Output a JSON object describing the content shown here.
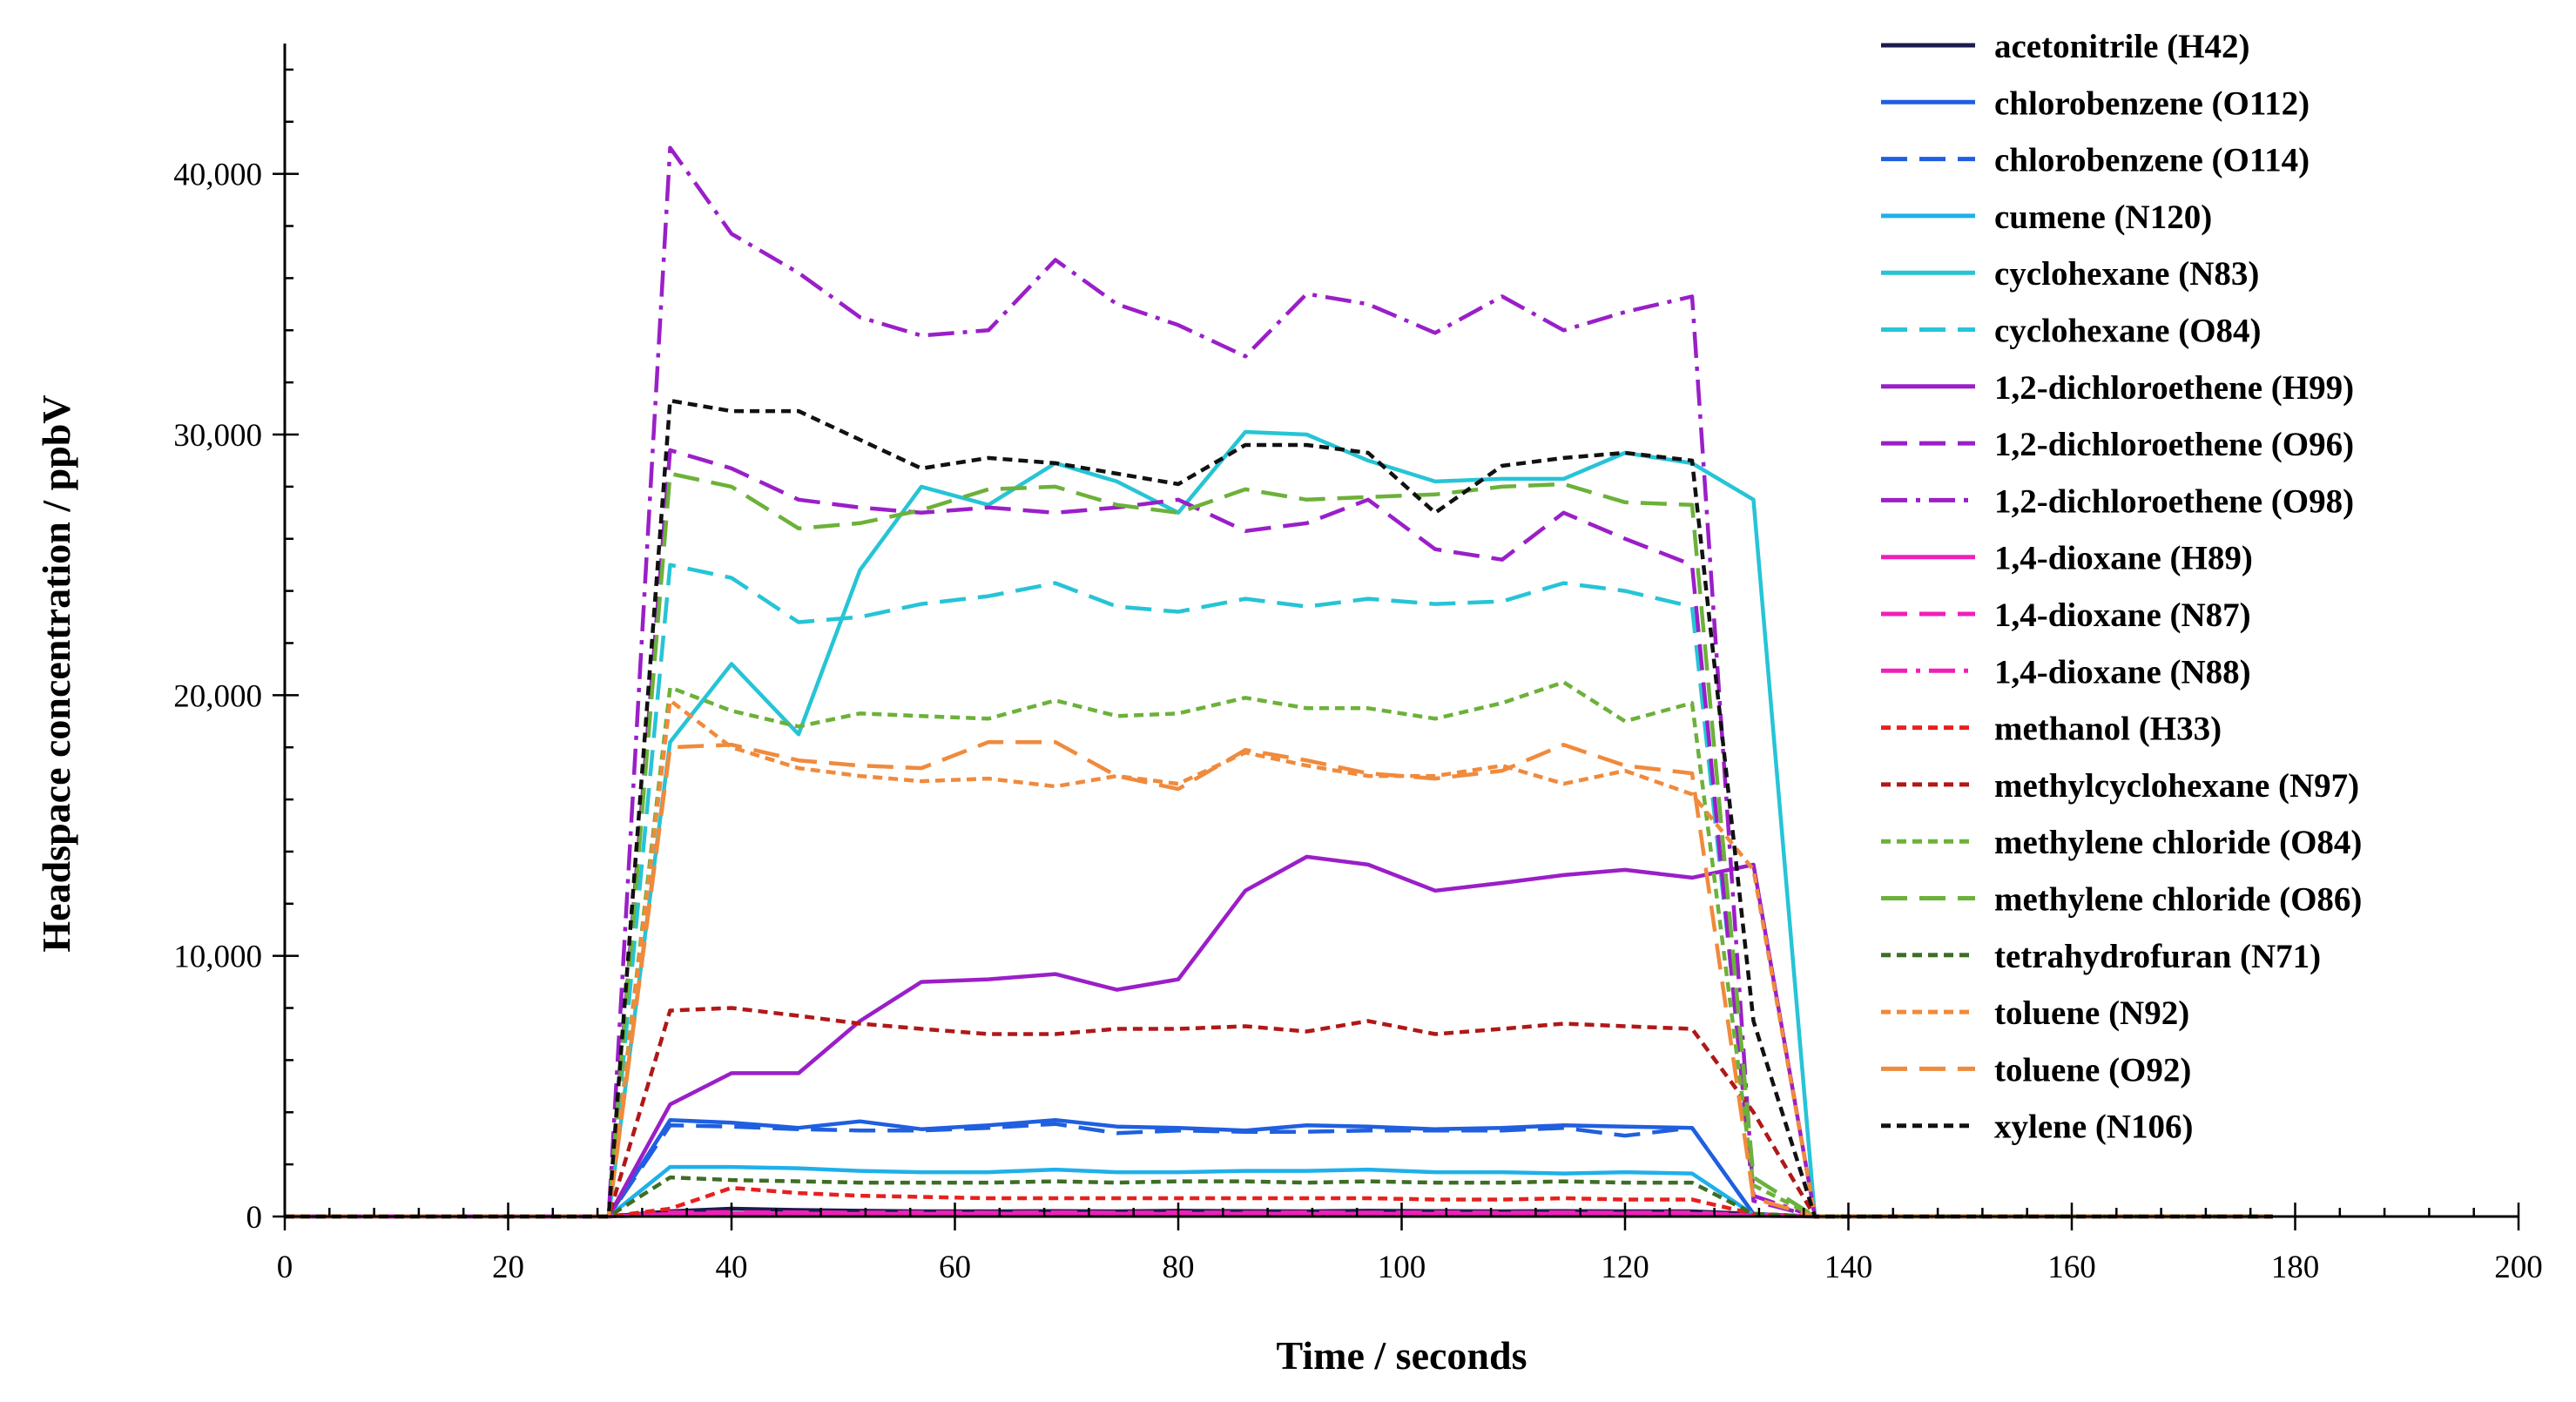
{
  "chart_data": {
    "type": "line",
    "title": "",
    "xlabel": "Time / seconds",
    "ylabel": "Headspace concentration / ppbV",
    "xlim": [
      0,
      200
    ],
    "ylim": [
      0,
      45000
    ],
    "x_ticks": [
      0,
      20,
      40,
      60,
      80,
      100,
      120,
      140,
      160,
      180,
      200
    ],
    "x_tick_labels": [
      "0",
      "20",
      "40",
      "60",
      "80",
      "100",
      "120",
      "140",
      "160",
      "180",
      "200"
    ],
    "y_ticks": [
      0,
      10000,
      20000,
      30000,
      40000
    ],
    "y_tick_labels": [
      "0",
      "10,000",
      "20,000",
      "30,000",
      "40,000"
    ],
    "grid": false,
    "legend_position": "right",
    "x": [
      0,
      6,
      12,
      17,
      23,
      29,
      34.5,
      40,
      46,
      51.5,
      57,
      63,
      69,
      74.5,
      80,
      86,
      91.5,
      97,
      103,
      109,
      114.5,
      120,
      126,
      131.5,
      137,
      143,
      149,
      154,
      160,
      166,
      172,
      178
    ],
    "series": [
      {
        "name": "acetonitrile (H42)",
        "color": "#1b1b4d",
        "dash": "solid",
        "values": [
          0,
          0,
          0,
          0,
          0,
          0,
          200,
          300,
          250,
          220,
          200,
          200,
          210,
          200,
          220,
          210,
          200,
          220,
          210,
          200,
          210,
          200,
          200,
          100,
          0,
          0,
          0,
          0,
          0,
          0,
          0,
          0
        ]
      },
      {
        "name": "chlorobenzene (O112)",
        "color": "#1f5fe0",
        "dash": "solid",
        "values": [
          0,
          0,
          0,
          0,
          0,
          0,
          3700,
          3600,
          3400,
          3650,
          3350,
          3500,
          3700,
          3450,
          3400,
          3300,
          3500,
          3450,
          3350,
          3400,
          3500,
          3450,
          3400,
          100,
          0,
          0,
          0,
          0,
          0,
          0,
          0,
          0
        ]
      },
      {
        "name": "chlorobenzene (O114)",
        "color": "#1f5fe0",
        "dash": "longdash",
        "values": [
          0,
          0,
          0,
          0,
          0,
          0,
          3500,
          3450,
          3350,
          3300,
          3300,
          3400,
          3550,
          3200,
          3300,
          3250,
          3250,
          3300,
          3300,
          3300,
          3400,
          3100,
          3400,
          100,
          0,
          0,
          0,
          0,
          0,
          0,
          0,
          0
        ]
      },
      {
        "name": "cumene (N120)",
        "color": "#1fb0ea",
        "dash": "solid",
        "values": [
          0,
          0,
          0,
          0,
          0,
          0,
          1900,
          1900,
          1850,
          1750,
          1700,
          1700,
          1800,
          1700,
          1700,
          1750,
          1750,
          1800,
          1700,
          1700,
          1650,
          1700,
          1650,
          80,
          0,
          0,
          0,
          0,
          0,
          0,
          0,
          0
        ]
      },
      {
        "name": "cyclohexane (N83)",
        "color": "#26c4d6",
        "dash": "solid",
        "values": [
          0,
          0,
          0,
          0,
          0,
          0,
          18200,
          21200,
          18500,
          24800,
          28000,
          27300,
          28900,
          28200,
          27000,
          30100,
          30000,
          29000,
          28200,
          28300,
          28300,
          29300,
          28900,
          27500,
          0,
          0,
          0,
          0,
          0,
          0,
          0,
          0
        ]
      },
      {
        "name": "cyclohexane (O84)",
        "color": "#26c4d6",
        "dash": "longdash",
        "values": [
          0,
          0,
          0,
          0,
          0,
          0,
          25000,
          24500,
          22800,
          23000,
          23500,
          23800,
          24300,
          23400,
          23200,
          23700,
          23400,
          23700,
          23500,
          23600,
          24300,
          24000,
          23400,
          1500,
          0,
          0,
          0,
          0,
          0,
          0,
          0,
          0
        ]
      },
      {
        "name": "1,2-dichloroethene (H99)",
        "color": "#9a1fc8",
        "dash": "solid",
        "values": [
          0,
          0,
          0,
          0,
          0,
          0,
          4300,
          5500,
          5500,
          7500,
          9000,
          9100,
          9300,
          8700,
          9100,
          12500,
          13800,
          13500,
          12500,
          12800,
          13100,
          13300,
          13000,
          13500,
          0,
          0,
          0,
          0,
          0,
          0,
          0,
          0
        ]
      },
      {
        "name": "1,2-dichloroethene (O96)",
        "color": "#9a1fc8",
        "dash": "longdash",
        "values": [
          0,
          0,
          0,
          0,
          0,
          0,
          29400,
          28700,
          27500,
          27200,
          27000,
          27200,
          27000,
          27200,
          27500,
          26300,
          26600,
          27500,
          25600,
          25200,
          27000,
          26000,
          25000,
          600,
          0,
          0,
          0,
          0,
          0,
          0,
          0,
          0
        ]
      },
      {
        "name": "1,2-dichloroethene (O98)",
        "color": "#9a1fc8",
        "dash": "dashdot",
        "values": [
          0,
          0,
          0,
          0,
          0,
          0,
          41000,
          37700,
          36200,
          34500,
          33800,
          34000,
          36700,
          35000,
          34200,
          33000,
          35400,
          35000,
          33900,
          35300,
          34000,
          34700,
          35300,
          800,
          0,
          0,
          0,
          0,
          0,
          0,
          0,
          0
        ]
      },
      {
        "name": "1,4-dioxane (H89)",
        "color": "#f01fb8",
        "dash": "solid",
        "values": [
          0,
          0,
          0,
          0,
          0,
          0,
          100,
          120,
          110,
          100,
          100,
          110,
          100,
          110,
          100,
          110,
          100,
          110,
          100,
          110,
          100,
          110,
          100,
          50,
          0,
          0,
          0,
          0,
          0,
          0,
          0,
          0
        ]
      },
      {
        "name": "1,4-dioxane (N87)",
        "color": "#f01fb8",
        "dash": "longdash",
        "values": [
          0,
          0,
          0,
          0,
          0,
          0,
          160,
          170,
          160,
          150,
          160,
          150,
          160,
          150,
          160,
          150,
          160,
          150,
          160,
          150,
          160,
          150,
          160,
          50,
          0,
          0,
          0,
          0,
          0,
          0,
          0,
          0
        ]
      },
      {
        "name": "1,4-dioxane (N88)",
        "color": "#f01fb8",
        "dash": "dashdot",
        "values": [
          0,
          0,
          0,
          0,
          0,
          0,
          60,
          70,
          60,
          60,
          60,
          60,
          60,
          60,
          60,
          60,
          60,
          60,
          60,
          60,
          60,
          60,
          60,
          30,
          0,
          0,
          0,
          0,
          0,
          0,
          0,
          0
        ]
      },
      {
        "name": "methanol (H33)",
        "color": "#e82020",
        "dash": "shortdash",
        "values": [
          0,
          0,
          0,
          0,
          0,
          0,
          300,
          1100,
          900,
          800,
          750,
          700,
          700,
          700,
          700,
          700,
          700,
          700,
          650,
          650,
          700,
          650,
          650,
          100,
          0,
          0,
          0,
          0,
          0,
          0,
          0,
          0
        ]
      },
      {
        "name": "methylcyclohexane (N97)",
        "color": "#b01818",
        "dash": "shortdash",
        "values": [
          0,
          0,
          0,
          0,
          0,
          0,
          7900,
          8000,
          7700,
          7400,
          7200,
          7000,
          7000,
          7200,
          7200,
          7300,
          7100,
          7500,
          7000,
          7200,
          7400,
          7300,
          7200,
          4000,
          0,
          0,
          0,
          0,
          0,
          0,
          0,
          0
        ]
      },
      {
        "name": "methylene chloride (O84)",
        "color": "#6cb13a",
        "dash": "shortdash",
        "values": [
          0,
          0,
          0,
          0,
          0,
          0,
          20300,
          19400,
          18800,
          19300,
          19200,
          19100,
          19800,
          19200,
          19300,
          19900,
          19500,
          19500,
          19100,
          19700,
          20500,
          19000,
          19700,
          1200,
          0,
          0,
          0,
          0,
          0,
          0,
          0,
          0
        ]
      },
      {
        "name": "methylene chloride (O86)",
        "color": "#6cb13a",
        "dash": "longdash",
        "values": [
          0,
          0,
          0,
          0,
          0,
          0,
          28500,
          28000,
          26400,
          26600,
          27100,
          27900,
          28000,
          27300,
          27000,
          27900,
          27500,
          27600,
          27700,
          28000,
          28100,
          27400,
          27300,
          1500,
          0,
          0,
          0,
          0,
          0,
          0,
          0,
          0
        ]
      },
      {
        "name": "tetrahydrofuran (N71)",
        "color": "#3d6e24",
        "dash": "shortdash",
        "values": [
          0,
          0,
          0,
          0,
          0,
          0,
          1500,
          1400,
          1350,
          1300,
          1300,
          1300,
          1350,
          1300,
          1350,
          1350,
          1300,
          1350,
          1300,
          1300,
          1350,
          1300,
          1300,
          100,
          0,
          0,
          0,
          0,
          0,
          0,
          0,
          0
        ]
      },
      {
        "name": "toluene (N92)",
        "color": "#f08a3c",
        "dash": "shortdash",
        "values": [
          0,
          0,
          0,
          0,
          0,
          0,
          19800,
          18000,
          17200,
          16900,
          16700,
          16800,
          16500,
          16900,
          16600,
          17800,
          17300,
          16900,
          16900,
          17300,
          16600,
          17100,
          16200,
          13300,
          0,
          0,
          0,
          0,
          0,
          0,
          0,
          0
        ]
      },
      {
        "name": "toluene (O92)",
        "color": "#f08a3c",
        "dash": "longdash",
        "values": [
          0,
          0,
          0,
          0,
          0,
          0,
          18000,
          18100,
          17500,
          17300,
          17200,
          18200,
          18200,
          16900,
          16400,
          17900,
          17500,
          17000,
          16800,
          17100,
          18100,
          17300,
          17000,
          700,
          0,
          0,
          0,
          0,
          0,
          0,
          0,
          0
        ]
      },
      {
        "name": "xylene (N106)",
        "color": "#111111",
        "dash": "shortdash",
        "values": [
          0,
          0,
          0,
          0,
          0,
          0,
          31300,
          30900,
          30900,
          29800,
          28700,
          29100,
          28900,
          28500,
          28100,
          29600,
          29600,
          29300,
          27000,
          28800,
          29100,
          29300,
          29000,
          7500,
          0,
          0,
          0,
          0,
          0,
          0,
          0,
          0
        ]
      }
    ]
  }
}
